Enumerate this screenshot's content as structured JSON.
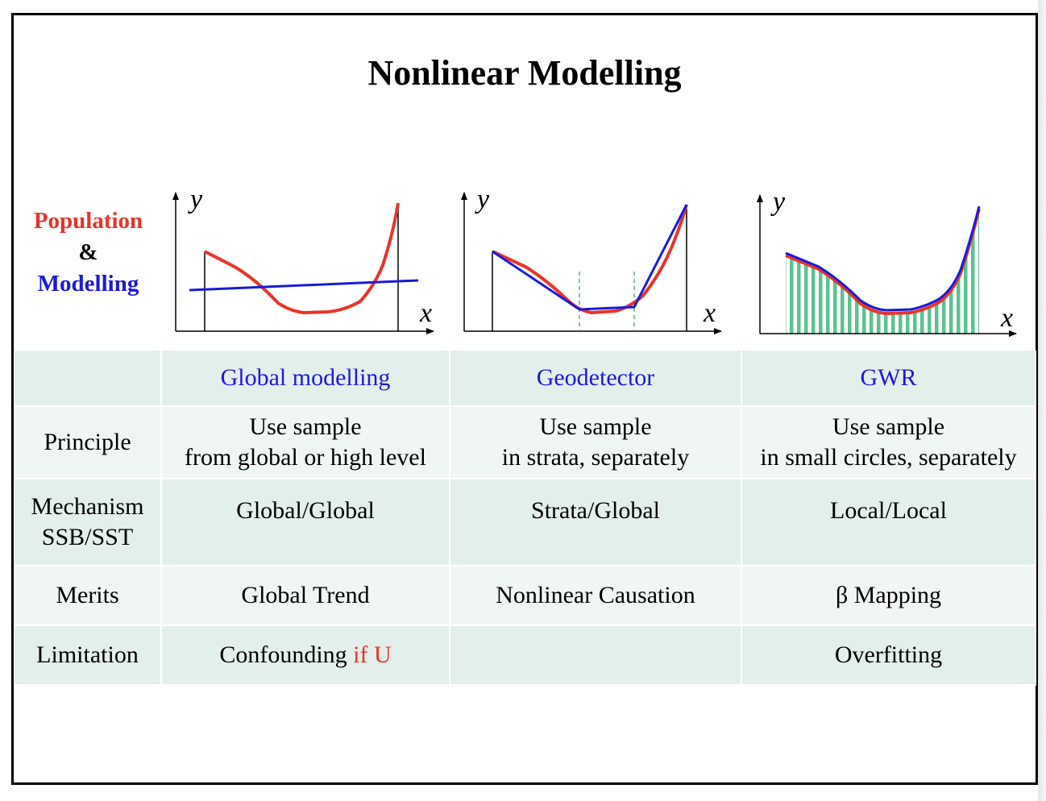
{
  "title": "Nonlinear Modelling",
  "legend": {
    "population": "Population",
    "amp": "&",
    "modelling": "Modelling"
  },
  "colors": {
    "population": "#e8342a",
    "modelling": "#1a1adb",
    "strata_line": "#3aa35a",
    "gwr_fill": "#5cc28f",
    "table_bg": "#e3efea"
  },
  "axes": {
    "x": "x",
    "y": "y"
  },
  "table": {
    "headers": [
      "",
      "Global modelling",
      "Geodetector",
      "GWR"
    ],
    "rows": [
      {
        "label": "Principle",
        "cells": [
          [
            "Use sample",
            "from global or high level"
          ],
          [
            "Use sample",
            "in strata, separately"
          ],
          [
            "Use sample",
            "in small circles, separately"
          ]
        ]
      },
      {
        "label": [
          "Mechanism",
          "SSB/SST"
        ],
        "cells": [
          [
            "Global/Global"
          ],
          [
            "Strata/Global"
          ],
          [
            "Local/Local"
          ]
        ]
      },
      {
        "label": "Merits",
        "cells": [
          [
            "Global Trend"
          ],
          [
            "Nonlinear Causation"
          ],
          [
            "β Mapping"
          ]
        ]
      },
      {
        "label": "Limitation",
        "cells": [
          [
            "Confounding ",
            "if U"
          ],
          [
            ""
          ],
          [
            "Overfitting"
          ]
        ]
      }
    ]
  }
}
